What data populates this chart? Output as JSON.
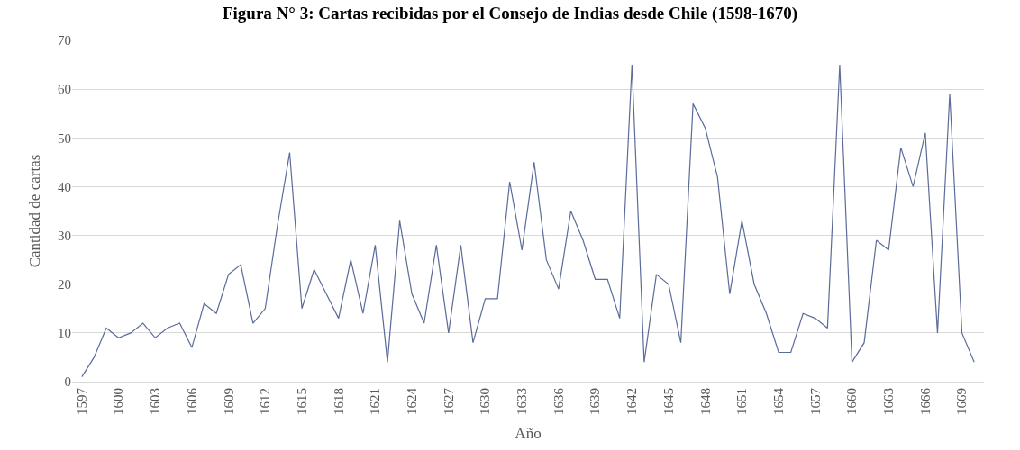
{
  "chart_data": {
    "type": "line",
    "title": "Figura N° 3: Cartas recibidas por el Consejo de Indias desde Chile (1598-1670)",
    "xlabel": "Año",
    "ylabel": "Cantidad de cartas",
    "categories": [
      "1597",
      null,
      null,
      "1600",
      null,
      null,
      "1603",
      null,
      null,
      "1606",
      null,
      null,
      "1609",
      null,
      null,
      "1612",
      null,
      null,
      "1615",
      null,
      null,
      "1618",
      null,
      null,
      "1621",
      null,
      null,
      "1624",
      null,
      null,
      "1627",
      null,
      null,
      "1630",
      null,
      null,
      "1633",
      null,
      null,
      "1636",
      null,
      null,
      "1639",
      null,
      null,
      "1642",
      null,
      null,
      "1645",
      null,
      null,
      "1648",
      null,
      null,
      "1651",
      null,
      null,
      "1654",
      null,
      null,
      "1657",
      null,
      null,
      "1660",
      null,
      null,
      "1663",
      null,
      null,
      "1666",
      null,
      null,
      "1669",
      null
    ],
    "series": [
      {
        "color": "#5b6b9a",
        "values": [
          1,
          5,
          11,
          9,
          10,
          12,
          9,
          11,
          12,
          7,
          16,
          14,
          22,
          24,
          12,
          15,
          32,
          47,
          15,
          23,
          18,
          13,
          25,
          14,
          28,
          4,
          33,
          18,
          12,
          28,
          10,
          28,
          8,
          17,
          17,
          41,
          27,
          45,
          25,
          19,
          35,
          29,
          21,
          21,
          13,
          65,
          4,
          22,
          20,
          8,
          57,
          52,
          42,
          18,
          33,
          20,
          14,
          6,
          6,
          14,
          13,
          11,
          65,
          4,
          8,
          29,
          27,
          48,
          40,
          51,
          10,
          59,
          10,
          4
        ]
      }
    ],
    "ylim": [
      0,
      70
    ],
    "yticks": [
      0,
      10,
      20,
      30,
      40,
      50,
      60,
      70
    ],
    "grid": "y",
    "legend": false,
    "marker": "none",
    "line_style": "solid"
  }
}
